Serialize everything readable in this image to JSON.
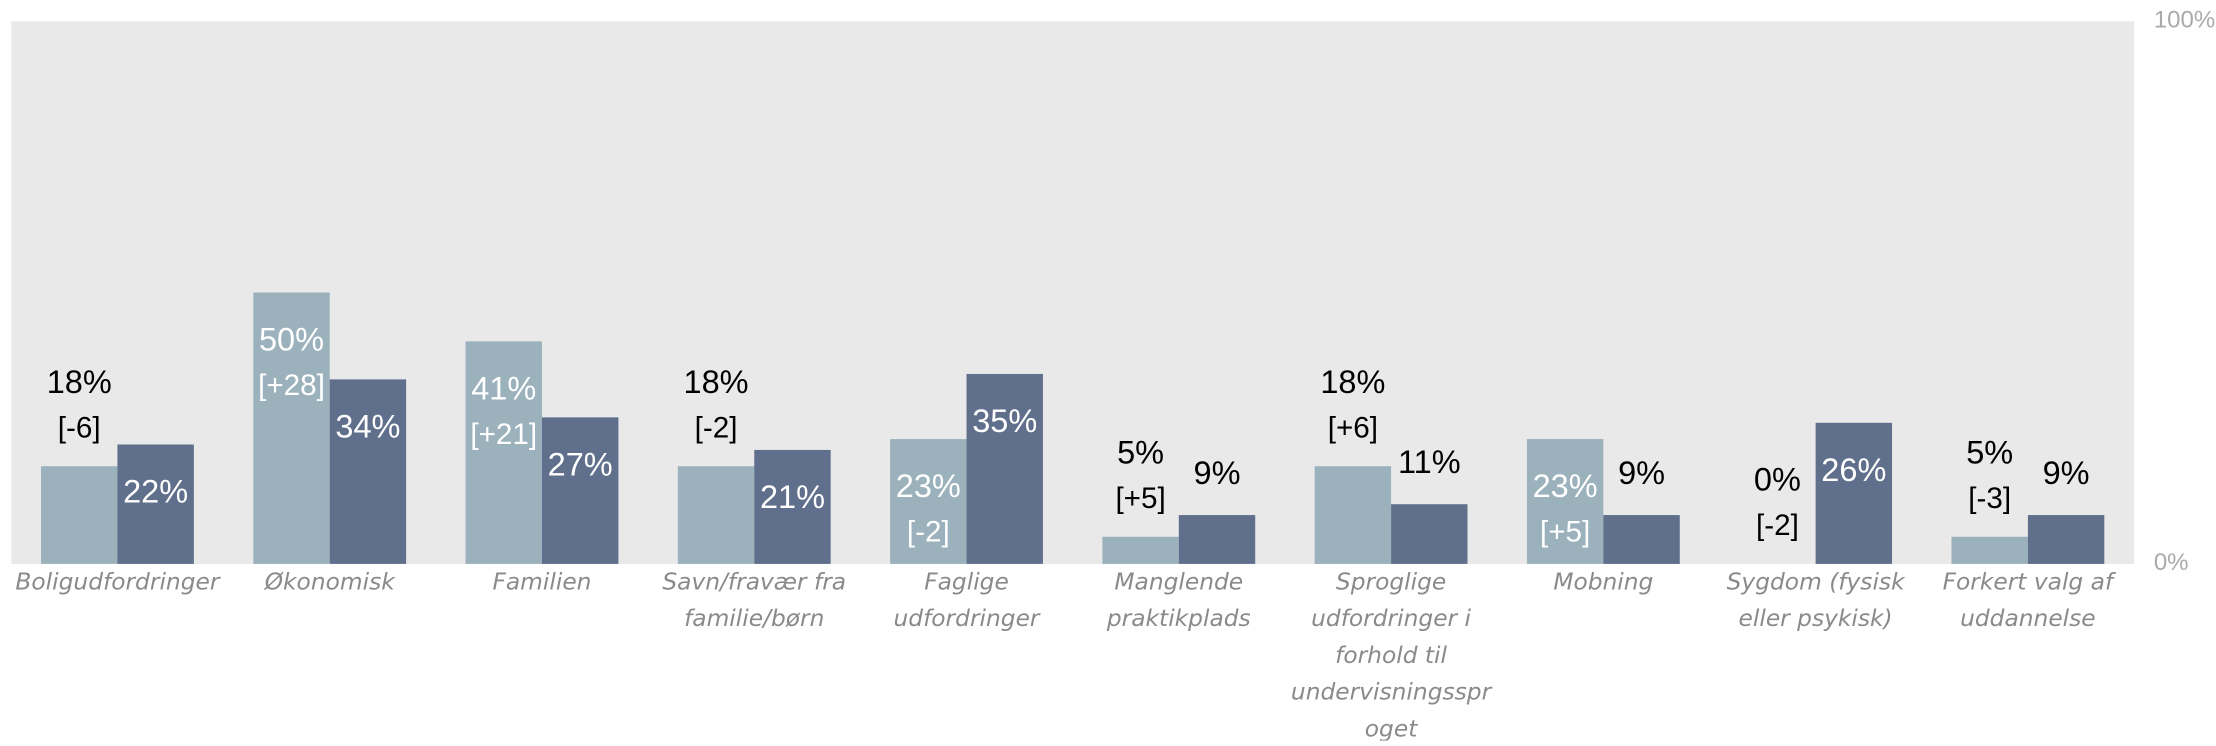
{
  "chart_data": {
    "type": "bar",
    "categories": [
      "Boligudfordringer",
      "Økonomisk",
      "Familien",
      "Savn/fravær fra familie/børn",
      "Faglige udfordringer",
      "Manglende praktikplads",
      "Sproglige udfordringer i forhold til undervisningssproget",
      "Mobning",
      "Sygdom (fysisk eller psykisk)",
      "Forkert valg af uddannelse"
    ],
    "series": [
      {
        "color": "#9bb1bc",
        "values": [
          18,
          50,
          41,
          18,
          23,
          5,
          18,
          23,
          0,
          5
        ],
        "value_labels": [
          "18%",
          "50%",
          "41%",
          "18%",
          "23%",
          "5%",
          "18%",
          "23%",
          "0%",
          "5%"
        ],
        "change_labels": [
          "[-6]",
          "[+28]",
          "[+21]",
          "[-2]",
          "[-2]",
          "[+5]",
          "[+6]",
          "[+5]",
          "[-2]",
          "[-3]"
        ]
      },
      {
        "color": "#5f6f8c",
        "values": [
          22,
          34,
          27,
          21,
          35,
          9,
          11,
          9,
          26,
          9
        ],
        "value_labels": [
          "22%",
          "34%",
          "27%",
          "21%",
          "35%",
          "9%",
          "11%",
          "9%",
          "26%",
          "9%"
        ]
      }
    ],
    "ylim": [
      0,
      100
    ],
    "yticks": [
      {
        "value": 0,
        "label": "0%"
      },
      {
        "value": 100,
        "label": "100%"
      }
    ]
  }
}
